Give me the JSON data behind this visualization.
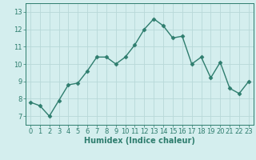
{
  "x": [
    0,
    1,
    2,
    3,
    4,
    5,
    6,
    7,
    8,
    9,
    10,
    11,
    12,
    13,
    14,
    15,
    16,
    17,
    18,
    19,
    20,
    21,
    22,
    23
  ],
  "y": [
    7.8,
    7.6,
    7.0,
    7.9,
    8.8,
    8.9,
    9.6,
    10.4,
    10.4,
    10.0,
    10.4,
    11.1,
    12.0,
    12.6,
    12.2,
    11.5,
    11.6,
    10.0,
    10.4,
    9.2,
    10.1,
    8.6,
    8.3,
    9.0
  ],
  "line_color": "#2e7d6e",
  "marker": "D",
  "marker_size": 2.5,
  "bg_color": "#d4eeee",
  "grid_color": "#b8d8d8",
  "tick_color": "#2e7d6e",
  "xlabel": "Humidex (Indice chaleur)",
  "xlabel_fontsize": 7,
  "ylim": [
    6.5,
    13.5
  ],
  "xlim": [
    -0.5,
    23.5
  ],
  "yticks": [
    7,
    8,
    9,
    10,
    11,
    12,
    13
  ],
  "xticks": [
    0,
    1,
    2,
    3,
    4,
    5,
    6,
    7,
    8,
    9,
    10,
    11,
    12,
    13,
    14,
    15,
    16,
    17,
    18,
    19,
    20,
    21,
    22,
    23
  ],
  "tick_fontsize": 6,
  "line_width": 1.0
}
